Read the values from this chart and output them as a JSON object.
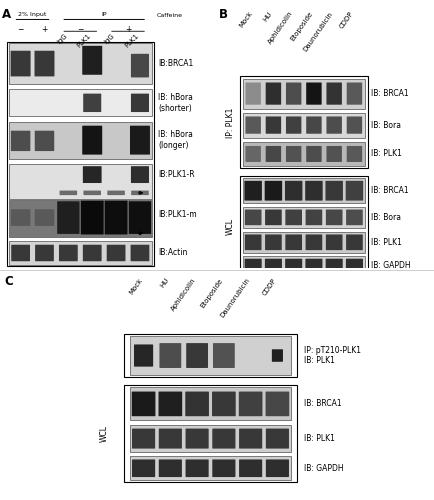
{
  "panel_A": {
    "blot_labels": [
      "IB:BRCA1",
      "IB: hBora\n(shorter)",
      "IB: hBora\n(longer)",
      "IB:PLK1-R",
      "IB:PLK1-m",
      "IB:Actin"
    ]
  },
  "panel_B": {
    "ip_label": "IP: PLK1",
    "wcl_label": "WCL",
    "col_labels": [
      "Mock",
      "HU",
      "Aphidicolin",
      "Etoposide",
      "Daunorubicin",
      "CDDP"
    ],
    "ip_blot_labels": [
      "IB: BRCA1",
      "IB: Bora",
      "IB: PLK1"
    ],
    "wcl_blot_labels": [
      "IB: BRCA1",
      "IB: Bora",
      "IB: PLK1",
      "IB: GAPDH"
    ]
  },
  "panel_C": {
    "wcl_label": "WCL",
    "col_labels": [
      "Mock",
      "HU",
      "Aphidicolin",
      "Etoposide",
      "Daunorubicin",
      "CDDP"
    ],
    "ip_blot_label": "IP: pT210-PLK1\nIB: PLK1",
    "wcl_blot_labels": [
      "IB: BRCA1",
      "IB: PLK1",
      "IB: GAPDH"
    ]
  },
  "bg_color": "#ffffff",
  "text_color": "#000000",
  "fontsize_label": 5.5,
  "fontsize_colhead": 5.0,
  "fontsize_panel": 8.5
}
